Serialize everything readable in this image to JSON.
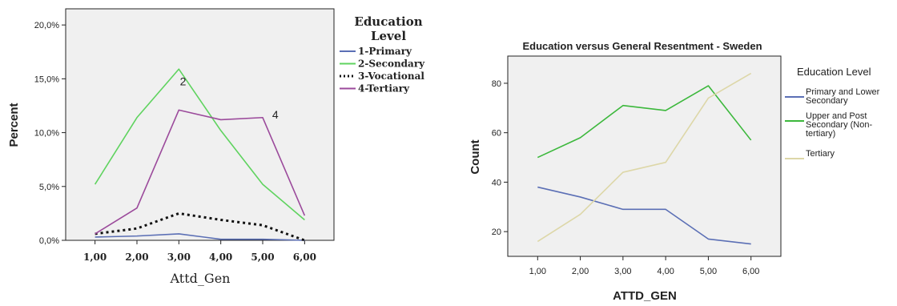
{
  "chart_data": [
    {
      "type": "line",
      "title": "",
      "xlabel": "Attd_Gen",
      "ylabel": "Percent",
      "x": [
        1,
        2,
        3,
        4,
        5,
        6
      ],
      "x_tick_labels": [
        "1,00",
        "2,00",
        "3,00",
        "4,00",
        "5,00",
        "6,00"
      ],
      "ylim": [
        0,
        21.5
      ],
      "y_ticks": [
        0,
        5,
        10,
        15,
        20
      ],
      "y_tick_labels": [
        "0,0%",
        "5,0%",
        "10,0%",
        "15,0%",
        "20,0%"
      ],
      "legend_title": "Education Level",
      "legend_position": "right",
      "grid": false,
      "series": [
        {
          "name": "1-Primary",
          "color": "#5b6fb5",
          "dash": "solid",
          "values": [
            0.3,
            0.4,
            0.6,
            0.1,
            0.1,
            0.0
          ]
        },
        {
          "name": "2-Secondary",
          "color": "#5fd35f",
          "dash": "solid",
          "values": [
            5.2,
            11.4,
            15.9,
            10.2,
            5.2,
            1.9
          ]
        },
        {
          "name": "3-Vocational",
          "color": "#111111",
          "dash": "dotted",
          "values": [
            0.6,
            1.1,
            2.5,
            1.9,
            1.4,
            0.0
          ]
        },
        {
          "name": "4-Tertiary",
          "color": "#9b4a9b",
          "dash": "solid",
          "values": [
            0.6,
            3.0,
            12.1,
            11.2,
            11.4,
            2.3
          ]
        }
      ],
      "annotations": [
        {
          "text": "2",
          "x": 3.1,
          "y": 14.4
        },
        {
          "text": "4",
          "x": 5.3,
          "y": 11.3
        }
      ]
    },
    {
      "type": "line",
      "title": "Education versus General Resentment - Sweden",
      "xlabel": "ATTD_GEN",
      "ylabel": "Count",
      "x": [
        1,
        2,
        3,
        4,
        5,
        6
      ],
      "x_tick_labels": [
        "1,00",
        "2,00",
        "3,00",
        "4,00",
        "5,00",
        "6,00"
      ],
      "ylim": [
        10,
        91
      ],
      "y_ticks": [
        20,
        40,
        60,
        80
      ],
      "y_tick_labels": [
        "20",
        "40",
        "60",
        "80"
      ],
      "legend_title": "Education Level",
      "legend_position": "right",
      "grid": false,
      "series": [
        {
          "name": "Primary and Lower Secondary",
          "color": "#5b6fb5",
          "values": [
            38,
            34,
            29,
            29,
            17,
            15
          ]
        },
        {
          "name": "Upper and Post Secondary (Non-tertiary)",
          "color": "#3cb83c",
          "values": [
            50,
            58,
            71,
            69,
            79,
            57
          ]
        },
        {
          "name": "Tertiary",
          "color": "#ddd7a8",
          "values": [
            16,
            27,
            44,
            48,
            74,
            84
          ]
        }
      ]
    }
  ],
  "left_legend": {
    "title_line1": "Education",
    "title_line2": "Level",
    "items": [
      "1-Primary",
      "2-Secondary",
      "3-Vocational",
      "4-Tertiary"
    ]
  },
  "right_legend": {
    "title": "Education Level",
    "items": [
      [
        "Primary and Lower",
        "Secondary"
      ],
      [
        "Upper and Post",
        "Secondary (Non-",
        "tertiary)"
      ],
      [
        "Tertiary"
      ]
    ]
  }
}
